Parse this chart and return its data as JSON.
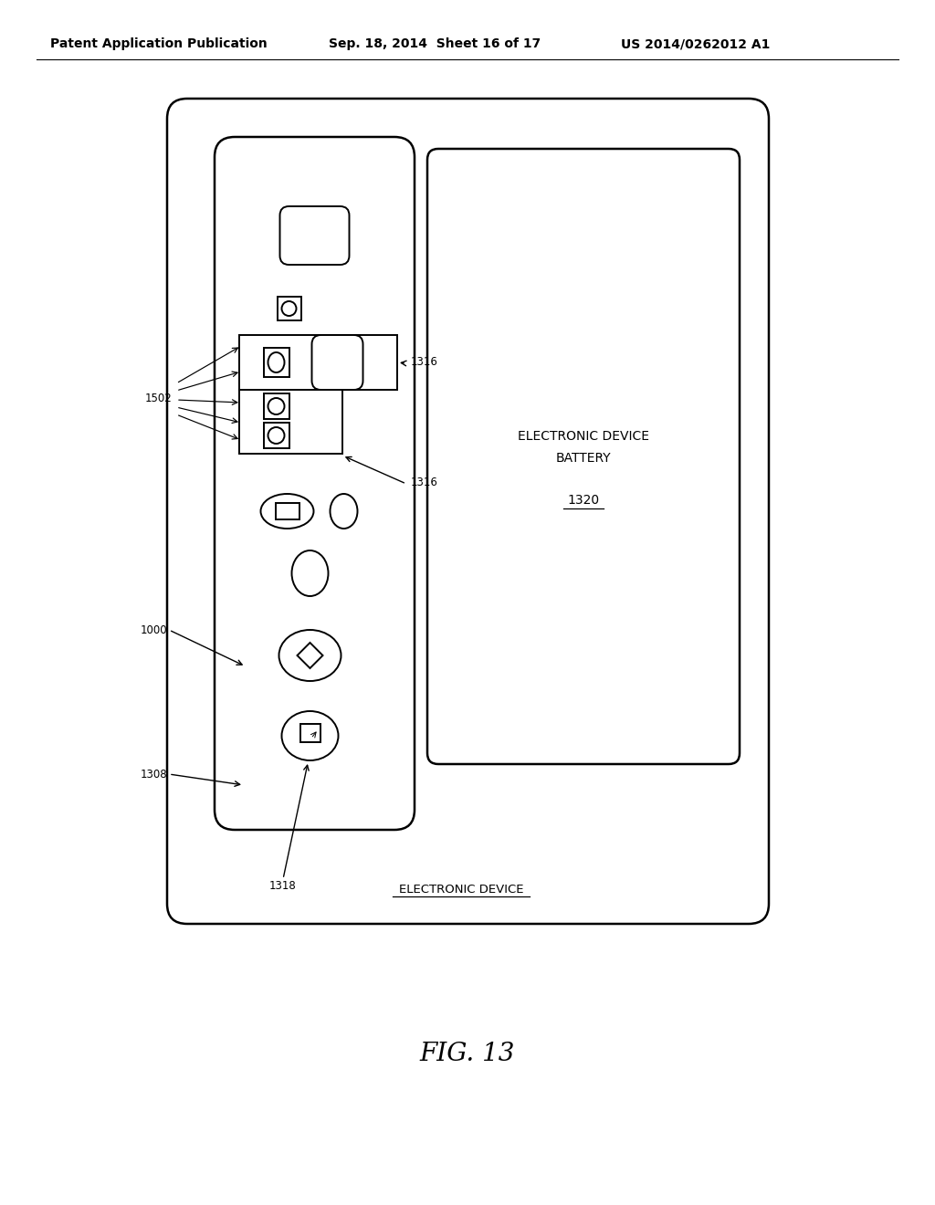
{
  "bg_color": "#ffffff",
  "header_left": "Patent Application Publication",
  "header_mid": "Sep. 18, 2014  Sheet 16 of 17",
  "header_right": "US 2014/0262012 A1",
  "fig_label": "FIG. 13",
  "label_1316_top": "1316",
  "label_1316_bot": "1316",
  "label_1502": "1502",
  "label_1000": "1000",
  "label_1308": "1308",
  "label_1318": "1318",
  "label_1320": "1320",
  "battery_line1": "ELECTRONIC DEVICE",
  "battery_line2": "BATTERY",
  "device_label": "ELECTRONIC DEVICE"
}
